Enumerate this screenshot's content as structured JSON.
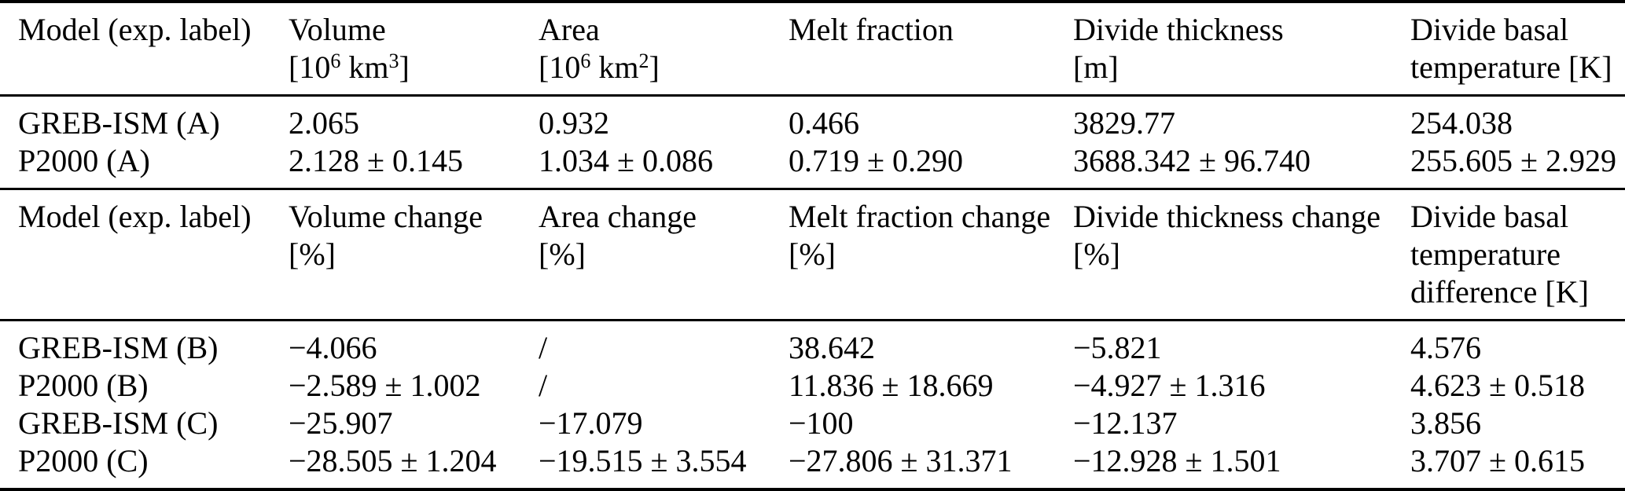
{
  "table": {
    "section1": {
      "header": {
        "model": "Model (exp. label)",
        "volume": {
          "title": "Volume",
          "unit_open": "[10",
          "unit_sup1": "6",
          "unit_mid": " km",
          "unit_sup2": "3",
          "unit_close": "]"
        },
        "area": {
          "title": "Area",
          "unit_open": "[10",
          "unit_sup1": "6",
          "unit_mid": " km",
          "unit_sup2": "2",
          "unit_close": "]"
        },
        "melt_fraction": {
          "title": "Melt fraction"
        },
        "divide_thickness": {
          "title": "Divide thickness",
          "unit": "[m]"
        },
        "divide_basal_temperature": {
          "title_line1": "Divide basal",
          "title_line2": "temperature [K]"
        }
      },
      "rows": [
        {
          "model": "GREB-ISM (A)",
          "volume": "2.065",
          "area": "0.932",
          "melt_fraction": "0.466",
          "divide_thickness": "3829.77",
          "divide_basal_temperature": "254.038"
        },
        {
          "model": "P2000 (A)",
          "volume": "2.128 ± 0.145",
          "area": "1.034 ± 0.086",
          "melt_fraction": "0.719 ± 0.290",
          "divide_thickness": "3688.342 ± 96.740",
          "divide_basal_temperature": "255.605 ± 2.929"
        }
      ]
    },
    "section2": {
      "header": {
        "model": "Model (exp. label)",
        "volume_change": {
          "title": "Volume change",
          "unit": "[%]"
        },
        "area_change": {
          "title": "Area change",
          "unit": "[%]"
        },
        "melt_fraction_change": {
          "title": "Melt fraction change",
          "unit": "[%]"
        },
        "divide_thickness_change": {
          "title": "Divide thickness change",
          "unit": "[%]"
        },
        "divide_basal_temperature_difference": {
          "title_line1": "Divide basal",
          "title_line2": "temperature",
          "title_line3": "difference [K]"
        }
      },
      "rows": [
        {
          "model": "GREB-ISM (B)",
          "volume_change": "−4.066",
          "area_change": "/",
          "melt_fraction_change": "38.642",
          "divide_thickness_change": "−5.821",
          "divide_basal_temperature_difference": "4.576"
        },
        {
          "model": "P2000 (B)",
          "volume_change": "−2.589 ± 1.002",
          "area_change": "/",
          "melt_fraction_change": "11.836 ± 18.669",
          "divide_thickness_change": "−4.927 ± 1.316",
          "divide_basal_temperature_difference": "4.623 ± 0.518"
        },
        {
          "model": "GREB-ISM (C)",
          "volume_change": "−25.907",
          "area_change": "−17.079",
          "melt_fraction_change": "−100",
          "divide_thickness_change": "−12.137",
          "divide_basal_temperature_difference": "3.856"
        },
        {
          "model": "P2000 (C)",
          "volume_change": "−28.505 ± 1.204",
          "area_change": "−19.515 ± 3.554",
          "melt_fraction_change": "−27.806 ± 31.371",
          "divide_thickness_change": "−12.928 ± 1.501",
          "divide_basal_temperature_difference": "3.707 ± 0.615"
        }
      ]
    }
  }
}
